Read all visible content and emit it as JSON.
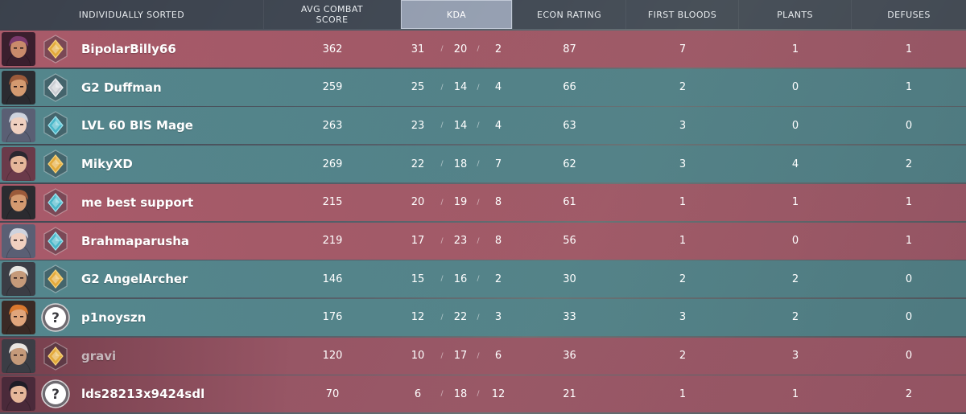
{
  "header": {
    "sort_label": "INDIVIDUALLY SORTED",
    "acs": "AVG COMBAT\nSCORE",
    "kda": "KDA",
    "econ": "ECON RATING",
    "first_bloods": "FIRST BLOODS",
    "plants": "PLANTS",
    "defuses": "DEFUSES"
  },
  "kda_separator": "/",
  "players": [
    {
      "name": "BipolarBilly66",
      "team": "red",
      "agent_icon": "agent-portrait-icon",
      "rank_icon": "gold-rank-icon",
      "acs": "362",
      "k": "31",
      "d": "20",
      "a": "2",
      "econ": "87",
      "fb": "7",
      "plants": "1",
      "defuses": "1"
    },
    {
      "name": "G2 Duffman",
      "team": "teal",
      "agent_icon": "agent-portrait-icon",
      "rank_icon": "silver-rank-icon",
      "acs": "259",
      "k": "25",
      "d": "14",
      "a": "4",
      "econ": "66",
      "fb": "2",
      "plants": "0",
      "defuses": "1"
    },
    {
      "name": "LVL 60 BIS Mage",
      "team": "teal",
      "agent_icon": "agent-portrait-icon",
      "rank_icon": "platinum-rank-icon",
      "acs": "263",
      "k": "23",
      "d": "14",
      "a": "4",
      "econ": "63",
      "fb": "3",
      "plants": "0",
      "defuses": "0"
    },
    {
      "name": "MikyXD",
      "team": "teal",
      "agent_icon": "agent-portrait-icon",
      "rank_icon": "gold-rank-icon",
      "acs": "269",
      "k": "22",
      "d": "18",
      "a": "7",
      "econ": "62",
      "fb": "3",
      "plants": "4",
      "defuses": "2"
    },
    {
      "name": "me best support",
      "team": "red",
      "agent_icon": "agent-portrait-icon",
      "rank_icon": "platinum-rank-icon",
      "acs": "215",
      "k": "20",
      "d": "19",
      "a": "8",
      "econ": "61",
      "fb": "1",
      "plants": "1",
      "defuses": "1"
    },
    {
      "name": "Brahmaparusha",
      "team": "red",
      "agent_icon": "agent-portrait-icon",
      "rank_icon": "platinum-rank-icon",
      "acs": "219",
      "k": "17",
      "d": "23",
      "a": "8",
      "econ": "56",
      "fb": "1",
      "plants": "0",
      "defuses": "1"
    },
    {
      "name": "G2 AngelArcher",
      "team": "teal",
      "agent_icon": "agent-portrait-icon",
      "rank_icon": "gold-rank-icon",
      "acs": "146",
      "k": "15",
      "d": "16",
      "a": "2",
      "econ": "30",
      "fb": "2",
      "plants": "2",
      "defuses": "0"
    },
    {
      "name": "p1noyszn",
      "team": "teal",
      "agent_icon": "agent-portrait-icon",
      "rank_icon": "unranked-icon",
      "acs": "176",
      "k": "12",
      "d": "22",
      "a": "3",
      "econ": "33",
      "fb": "3",
      "plants": "2",
      "defuses": "0"
    },
    {
      "name": "gravi",
      "team": "red",
      "agent_icon": "agent-portrait-icon",
      "rank_icon": "gold-rank-icon",
      "acs": "120",
      "k": "10",
      "d": "17",
      "a": "6",
      "econ": "36",
      "fb": "2",
      "plants": "3",
      "defuses": "0"
    },
    {
      "name": "lds28213x9424sdl",
      "team": "red",
      "agent_icon": "agent-portrait-icon",
      "rank_icon": "unranked-icon",
      "acs": "70",
      "k": "6",
      "d": "18",
      "a": "12",
      "econ": "21",
      "fb": "1",
      "plants": "1",
      "defuses": "2"
    }
  ],
  "colors": {
    "red_row": "#b25c6c",
    "teal_row": "#568c92",
    "gold_rank": "#e3a93a",
    "silver_rank": "#c9ccd2",
    "platinum_rank": "#49b6c8",
    "active_header": "#afb9cd"
  }
}
